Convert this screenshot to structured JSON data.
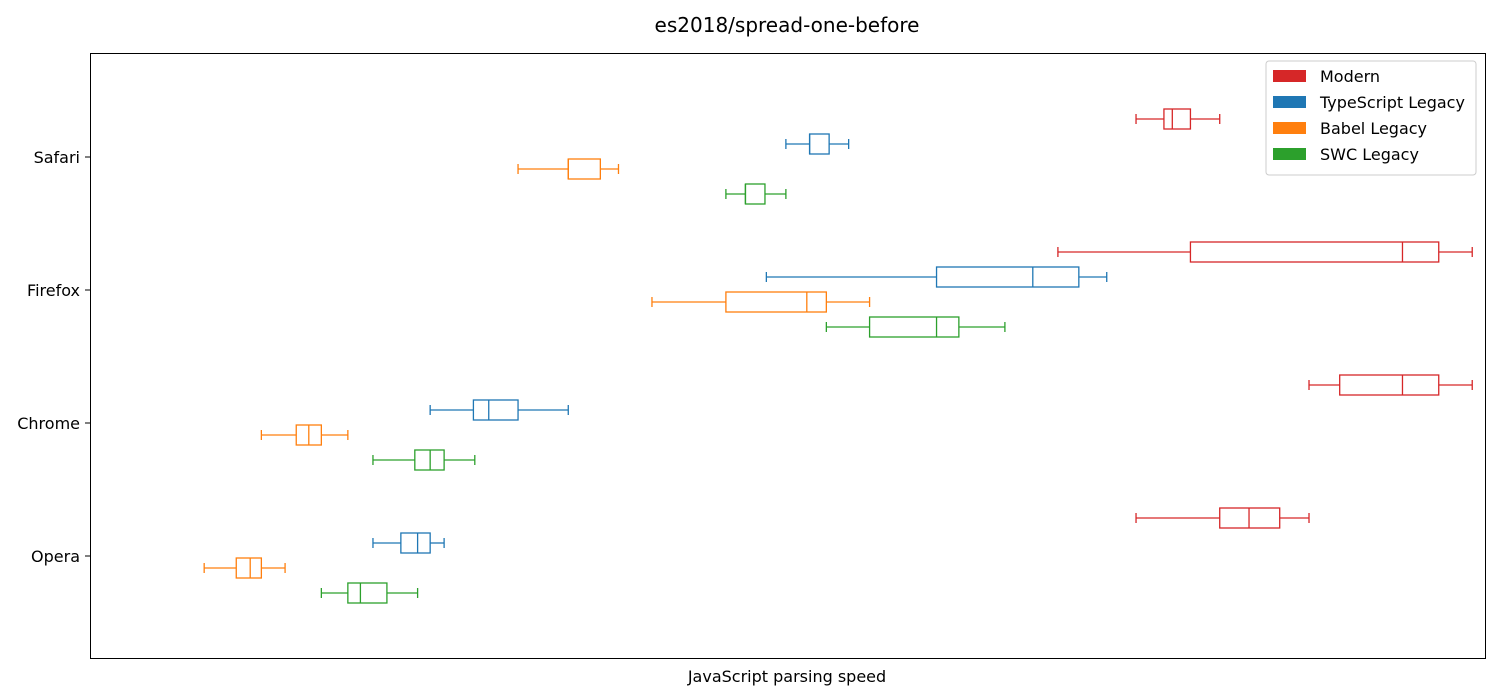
{
  "chart_data": {
    "type": "boxplot",
    "orientation": "horizontal",
    "title": "es2018/spread-one-before",
    "xlabel": "JavaScript parsing speed",
    "ylabel": "",
    "x_ticks_shown": false,
    "x_range": [
      0,
      100
    ],
    "categories": [
      "Safari",
      "Firefox",
      "Chrome",
      "Opera"
    ],
    "legend": {
      "position": "top-right"
    },
    "series": [
      {
        "name": "Modern",
        "color": "#d62728",
        "boxes": [
          {
            "category": "Safari",
            "whislo": 71.4,
            "q1": 73.4,
            "med": 74.0,
            "q3": 75.3,
            "whishi": 77.4
          },
          {
            "category": "Firefox",
            "whislo": 65.8,
            "q1": 75.3,
            "med": 90.5,
            "q3": 93.1,
            "whishi": 95.5
          },
          {
            "category": "Chrome",
            "whislo": 83.8,
            "q1": 86.0,
            "med": 90.5,
            "q3": 93.1,
            "whishi": 95.5
          },
          {
            "category": "Opera",
            "whislo": 71.4,
            "q1": 77.4,
            "med": 79.5,
            "q3": 81.7,
            "whishi": 83.8
          }
        ]
      },
      {
        "name": "TypeScript Legacy",
        "color": "#1f77b4",
        "boxes": [
          {
            "category": "Safari",
            "whislo": 46.3,
            "q1": 48.0,
            "med": 48.0,
            "q3": 49.4,
            "whishi": 50.8
          },
          {
            "category": "Firefox",
            "whislo": 44.9,
            "q1": 57.1,
            "med": 64.0,
            "q3": 67.3,
            "whishi": 69.3
          },
          {
            "category": "Chrome",
            "whislo": 20.8,
            "q1": 23.9,
            "med": 25.0,
            "q3": 27.1,
            "whishi": 30.7
          },
          {
            "category": "Opera",
            "whislo": 16.7,
            "q1": 18.7,
            "med": 19.9,
            "q3": 20.8,
            "whishi": 21.8
          }
        ]
      },
      {
        "name": "Babel Legacy",
        "color": "#ff7f0e",
        "boxes": [
          {
            "category": "Safari",
            "whislo": 27.1,
            "q1": 30.7,
            "med": 30.7,
            "q3": 33.0,
            "whishi": 34.3
          },
          {
            "category": "Firefox",
            "whislo": 36.7,
            "q1": 42.0,
            "med": 47.8,
            "q3": 49.2,
            "whishi": 52.3
          },
          {
            "category": "Chrome",
            "whislo": 8.7,
            "q1": 11.2,
            "med": 12.1,
            "q3": 13.0,
            "whishi": 14.9
          },
          {
            "category": "Opera",
            "whislo": 4.6,
            "q1": 6.9,
            "med": 7.9,
            "q3": 8.7,
            "whishi": 10.4
          }
        ]
      },
      {
        "name": "SWC Legacy",
        "color": "#2ca02c",
        "boxes": [
          {
            "category": "Safari",
            "whislo": 42.0,
            "q1": 43.4,
            "med": 43.4,
            "q3": 44.8,
            "whishi": 46.3
          },
          {
            "category": "Firefox",
            "whislo": 49.2,
            "q1": 52.3,
            "med": 57.1,
            "q3": 58.7,
            "whishi": 62.0
          },
          {
            "category": "Chrome",
            "whislo": 16.7,
            "q1": 19.7,
            "med": 20.8,
            "q3": 21.8,
            "whishi": 24.0
          },
          {
            "category": "Opera",
            "whislo": 13.0,
            "q1": 14.9,
            "med": 15.8,
            "q3": 17.7,
            "whishi": 19.9
          }
        ]
      }
    ]
  }
}
